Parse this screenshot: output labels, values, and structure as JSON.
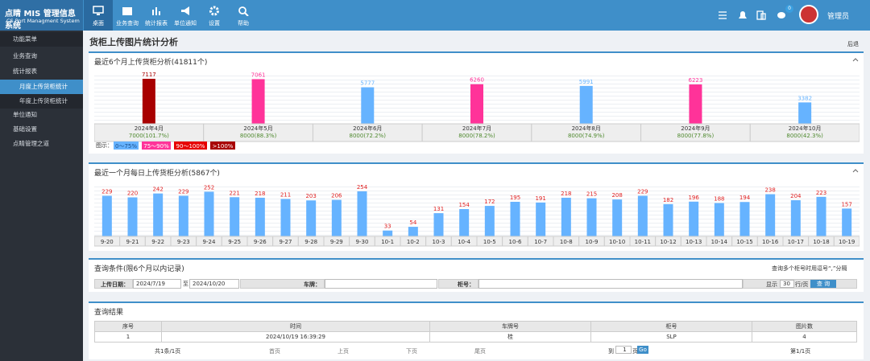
{
  "header": {
    "logo_title": "点睛 MIS 管理信息系统",
    "logo_subtitle": "CS Port Managment System",
    "nav": [
      "桌面",
      "业务查询",
      "统计报表",
      "单位通知",
      "设置",
      "帮助"
    ],
    "badge": "0",
    "user": "管理员"
  },
  "sidebar": {
    "title": "功能菜单",
    "items": [
      "业务查询",
      "统计报表",
      "月度上传货柜统计",
      "年度上传货柜统计",
      "单位通知",
      "基础设置",
      "点睛管理之道"
    ]
  },
  "page": {
    "title": "货柜上传图片统计分析",
    "back": "后退"
  },
  "chart_data": [
    {
      "type": "bar",
      "title": "最近6个月上传货柜分析(41811个)",
      "categories": [
        "2024年4月",
        "2024年5月",
        "2024年6月",
        "2024年7月",
        "2024年8月",
        "2024年9月",
        "2024年10月"
      ],
      "values": [
        7117,
        7061,
        5777,
        6260,
        5991,
        6223,
        3382
      ],
      "colors": [
        "#a80000",
        "#ff3399",
        "#66b3ff",
        "#ff3399",
        "#66b3ff",
        "#ff3399",
        "#66b3ff"
      ],
      "target_labels": [
        "7000(101.7%)",
        "8000(88.3%)",
        "8000(72.2%)",
        "8000(78.2%)",
        "8000(74.9%)",
        "8000(77.8%)",
        "8000(42.3%)"
      ],
      "legend": {
        "title": "图示：",
        "items": [
          {
            "label": "0～75%",
            "color": "#66b3ff"
          },
          {
            "label": "75～90%",
            "color": "#ff3399"
          },
          {
            "label": "90～100%",
            "color": "#e60000"
          },
          {
            "label": ">100%",
            "color": "#a80000"
          }
        ]
      }
    },
    {
      "type": "bar",
      "title": "最近一个月每日上传货柜分析(5867个)",
      "categories": [
        "9-20",
        "9-21",
        "9-22",
        "9-23",
        "9-24",
        "9-25",
        "9-26",
        "9-27",
        "9-28",
        "9-29",
        "9-30",
        "10-1",
        "10-2",
        "10-3",
        "10-4",
        "10-5",
        "10-6",
        "10-7",
        "10-8",
        "10-9",
        "10-10",
        "10-11",
        "10-12",
        "10-13",
        "10-14",
        "10-15",
        "10-16",
        "10-17",
        "10-18",
        "10-19"
      ],
      "values": [
        229,
        220,
        242,
        229,
        252,
        221,
        218,
        211,
        203,
        206,
        254,
        33,
        54,
        131,
        154,
        172,
        195,
        191,
        218,
        215,
        208,
        229,
        182,
        196,
        188,
        194,
        238,
        204,
        223,
        157
      ],
      "color": "#66b3ff",
      "label_color": "#e02020"
    }
  ],
  "query": {
    "title": "查询条件(限6个月以内记录)",
    "hint": "查询多个柜号时用逗号“,”分隔",
    "date_label": "上传日期：",
    "date_from": "2024/7/19",
    "date_sep": "至",
    "date_to": "2024/10/20",
    "plate_label": "车牌：",
    "box_label": "柜号：",
    "show_label": "显示",
    "rows": "30",
    "rows_unit": "行/页",
    "button": "查 询"
  },
  "results": {
    "title": "查询结果",
    "headers": [
      "序号",
      "时间",
      "车牌号",
      "柜号",
      "图片数"
    ],
    "rows": [
      [
        "1",
        "2024/10/19 16:39:29",
        "桂",
        "SLP",
        "4"
      ]
    ],
    "pager": {
      "total": "共1条/1页",
      "first": "首页",
      "prev": "上页",
      "next": "下页",
      "last": "尾页",
      "goto": "到",
      "page": "1",
      "unit": "页",
      "go": "Go",
      "current": "第1/1页"
    }
  }
}
